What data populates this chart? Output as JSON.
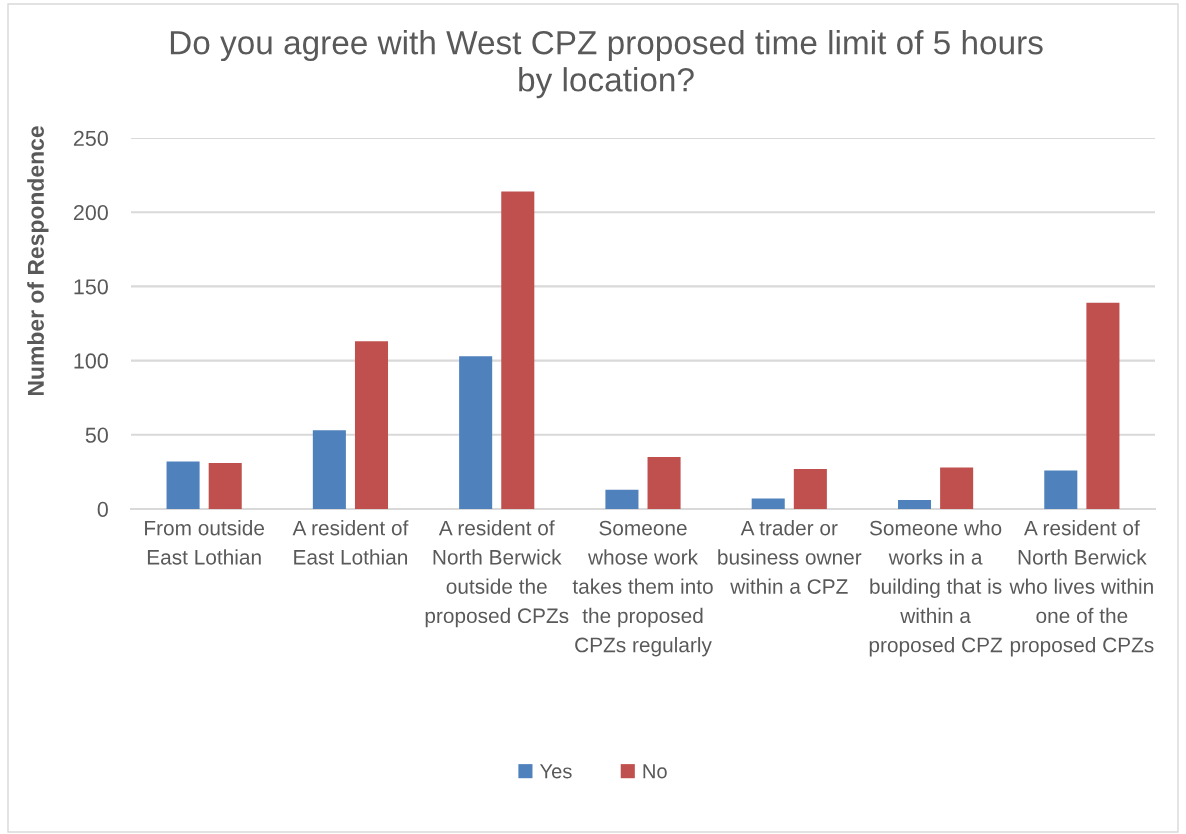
{
  "chart_data": {
    "type": "bar",
    "title": "Do you agree with West CPZ proposed time limit of 5 hours by location?",
    "ylabel": "Number of Respondence",
    "categories": [
      "From outside East Lothian",
      "A resident of East Lothian",
      "A resident of North Berwick outside the proposed CPZs",
      "Someone whose work takes them into the proposed CPZs regularly",
      "A trader or business owner within a CPZ",
      "Someone who works in a building that is within a proposed CPZ",
      "A resident of North Berwick who lives within one of the proposed CPZs"
    ],
    "series": [
      {
        "name": "Yes",
        "color": "#4f81bd",
        "values": [
          32,
          53,
          103,
          13,
          7,
          6,
          26
        ]
      },
      {
        "name": "No",
        "color": "#c0504d",
        "values": [
          31,
          113,
          214,
          35,
          27,
          28,
          139
        ]
      }
    ],
    "ylim": [
      0,
      250
    ],
    "yticks": [
      0,
      50,
      100,
      150,
      200,
      250
    ],
    "grid": "y",
    "legend": "bottom"
  }
}
